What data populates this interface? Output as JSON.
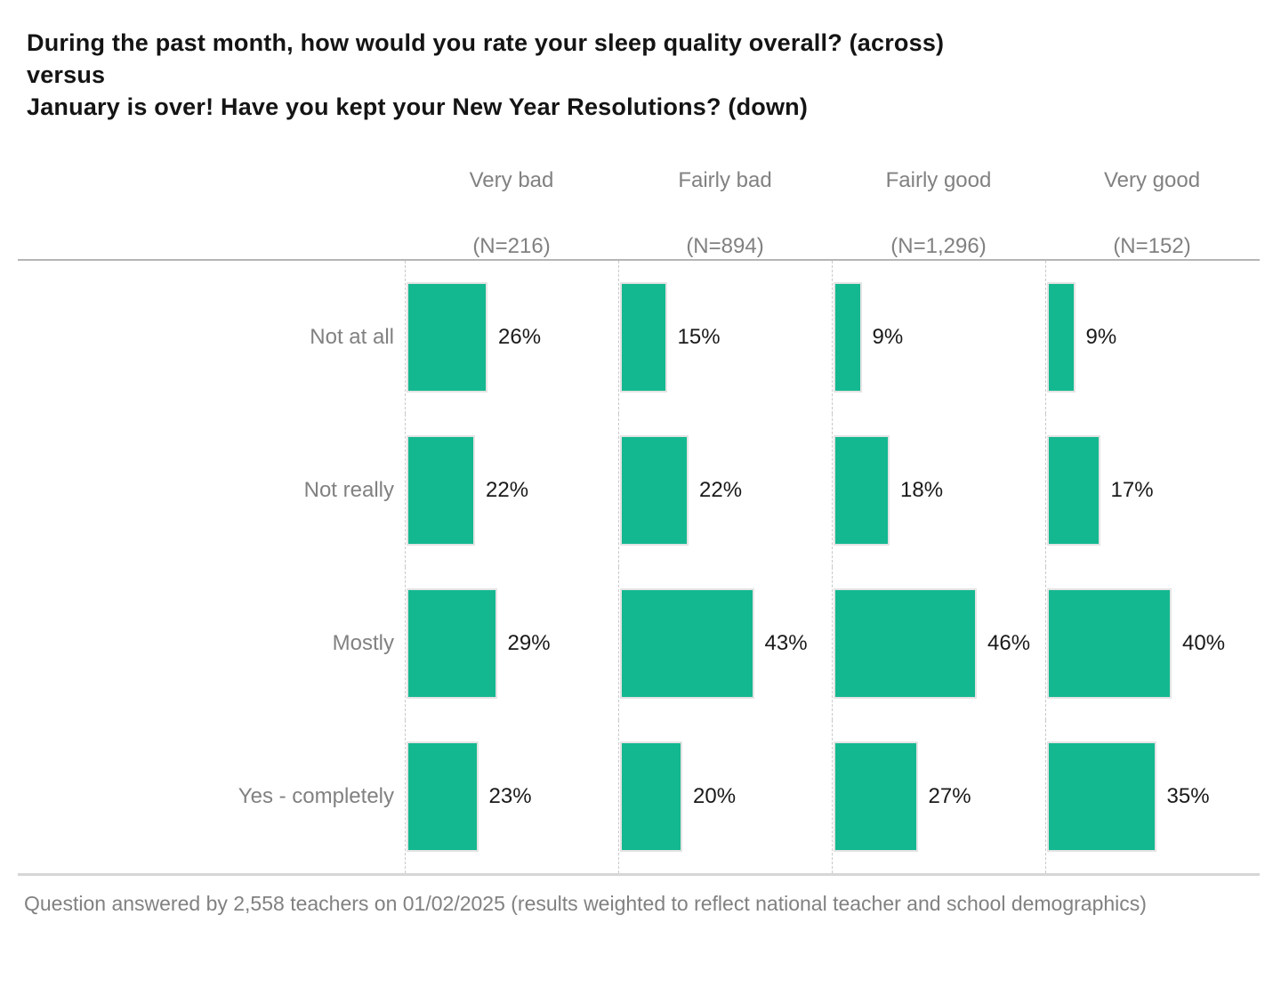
{
  "header": {
    "title_lines": [
      "During the past month, how would you rate your sleep quality overall? (across)",
      "versus",
      "January is over! Have you kept your New Year Resolutions? (down)"
    ]
  },
  "chart_data": {
    "type": "bar",
    "layout": "small-multiples-horizontal-bars",
    "title": "During the past month, how would you rate your sleep quality overall? (across) versus January is over! Have you kept your New Year Resolutions? (down)",
    "columns": [
      {
        "label": "Very bad",
        "n_label": "(N=216)"
      },
      {
        "label": "Fairly bad",
        "n_label": "(N=894)"
      },
      {
        "label": "Fairly good",
        "n_label": "(N=1,296)"
      },
      {
        "label": "Very good",
        "n_label": "(N=152)"
      }
    ],
    "categories": [
      "Not at all",
      "Not really",
      "Mostly",
      "Yes - completely"
    ],
    "series": [
      {
        "name": "Very bad",
        "values": [
          26,
          22,
          29,
          23
        ]
      },
      {
        "name": "Fairly bad",
        "values": [
          15,
          22,
          43,
          20
        ]
      },
      {
        "name": "Fairly good",
        "values": [
          9,
          18,
          46,
          27
        ]
      },
      {
        "name": "Very good",
        "values": [
          9,
          17,
          40,
          35
        ]
      }
    ],
    "value_suffix": "%",
    "value_range": [
      0,
      100
    ],
    "bar_color": "#14b890",
    "grid": "dashed-column-separators",
    "legend": "none"
  },
  "footer": {
    "note": "Question answered by 2,558 teachers on 01/02/2025 (results weighted to reflect national teacher and school demographics)"
  }
}
